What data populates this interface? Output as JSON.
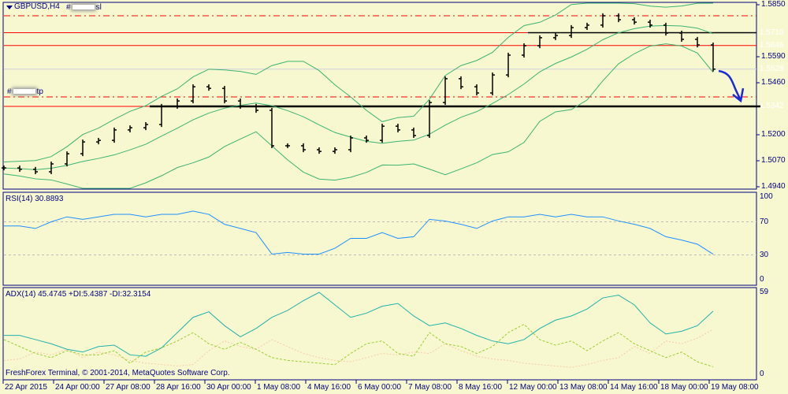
{
  "window": {
    "symbol_title": "GBPUSD,H4",
    "copyright": "FreshForex Terminal, © 2001-2014, MetaQuotes Software Corp."
  },
  "orders": {
    "sl_prefix": "#",
    "sl_suffix": "sl",
    "tp_prefix": "#",
    "tp_suffix": "tp"
  },
  "colors": {
    "background": "#f8f8d0",
    "border": "#000080",
    "bands": "#3cb371",
    "bars": "#000000",
    "level_red": "#ff0000",
    "rsi": "#1e90ff",
    "adx": "#20b2aa",
    "plus_di": "#9acd32",
    "minus_di": "#f5cba7",
    "arrow": "#1a2ad8"
  },
  "price_axis": {
    "ticks": [
      "1.5850",
      "1.5590",
      "1.5460",
      "1.5200",
      "1.5070",
      "1.4940"
    ],
    "range": [
      1.494,
      1.585
    ]
  },
  "price_tags": [
    {
      "value": "1.5710",
      "color": "#ff0000"
    },
    {
      "value": "1.5646",
      "color": "#ff0000"
    },
    {
      "value": "1.5528",
      "color": "#000080"
    },
    {
      "value": "1.5342",
      "color": "#ff0000"
    }
  ],
  "levels": {
    "sl": 1.5795,
    "resistance_1": 1.571,
    "resistance_2": 1.5646,
    "bid": 1.5528,
    "tp": 1.5389,
    "support": 1.5342
  },
  "rsi": {
    "label": "RSI(14) 30.8893",
    "ticks": [
      "100",
      "70",
      "30",
      "0"
    ]
  },
  "adx": {
    "label": "ADX(14) 45.4745 +DI:5.4387 -DI:32.3154",
    "ticks": [
      "59",
      "0"
    ]
  },
  "time_axis": [
    "22 Apr 2015",
    "24 Apr 00:00",
    "27 Apr 08:00",
    "28 Apr 16:00",
    "30 Apr 00:00",
    "1 May 08:00",
    "4 May 16:00",
    "6 May 00:00",
    "7 May 08:00",
    "8 May 16:00",
    "12 May 00:00",
    "13 May 08:00",
    "14 May 16:00",
    "18 May 00:00",
    "19 May 08:00"
  ],
  "chart_data": {
    "type": "line",
    "title": "GBPUSD,H4",
    "close": [
      1.5034,
      1.5027,
      1.5015,
      1.5054,
      1.5105,
      1.5164,
      1.5172,
      1.5224,
      1.5235,
      1.5251,
      1.5342,
      1.5369,
      1.544,
      1.5432,
      1.5369,
      1.5342,
      1.5322,
      1.5145,
      1.5145,
      1.5125,
      1.5117,
      1.5125,
      1.5184,
      1.5172,
      1.5243,
      1.5224,
      1.5196,
      1.5361,
      1.548,
      1.544,
      1.5409,
      1.5499,
      1.5598,
      1.5645,
      1.5685,
      1.5696,
      1.5736,
      1.5748,
      1.5795,
      1.5775,
      1.5763,
      1.5748,
      1.5708,
      1.5677,
      1.5649,
      1.5528
    ],
    "rsi": [
      65,
      65,
      62,
      70,
      76,
      73,
      76,
      79,
      79,
      76,
      79,
      79,
      83,
      79,
      67,
      62,
      57,
      31,
      33,
      31,
      31,
      38,
      50,
      50,
      57,
      50,
      52,
      73,
      71,
      67,
      62,
      71,
      76,
      76,
      79,
      76,
      79,
      76,
      76,
      71,
      67,
      62,
      52,
      48,
      43,
      30.89
    ],
    "adx": [
      28,
      28,
      25,
      22,
      18,
      16,
      20,
      21,
      14,
      13,
      19,
      30,
      41,
      45,
      35,
      27,
      33,
      41,
      46,
      53,
      59,
      50,
      41,
      44,
      49,
      51,
      42,
      35,
      37,
      33,
      28,
      24,
      22,
      25,
      33,
      39,
      42,
      47,
      55,
      57,
      50,
      37,
      29,
      31,
      35,
      45.47
    ],
    "plus_di": [
      25,
      20,
      15,
      12,
      17,
      14,
      14,
      17,
      8,
      16,
      19,
      24,
      30,
      22,
      18,
      23,
      18,
      12,
      10,
      9,
      8,
      7,
      15,
      22,
      24,
      15,
      13,
      30,
      22,
      20,
      15,
      20,
      30,
      36,
      25,
      21,
      24,
      17,
      24,
      30,
      22,
      17,
      12,
      16,
      9,
      5.44
    ],
    "minus_di": [
      10,
      11,
      16,
      14,
      18,
      12,
      16,
      14,
      10,
      8,
      7,
      6,
      7,
      17,
      24,
      20,
      18,
      25,
      20,
      15,
      12,
      10,
      9,
      12,
      15,
      14,
      16,
      15,
      22,
      17,
      13,
      11,
      10,
      8,
      7,
      6,
      5,
      7,
      10,
      12,
      20,
      15,
      24,
      22,
      26,
      32.32
    ],
    "rsi_range": [
      0,
      100
    ],
    "adx_range": [
      0,
      59
    ]
  }
}
